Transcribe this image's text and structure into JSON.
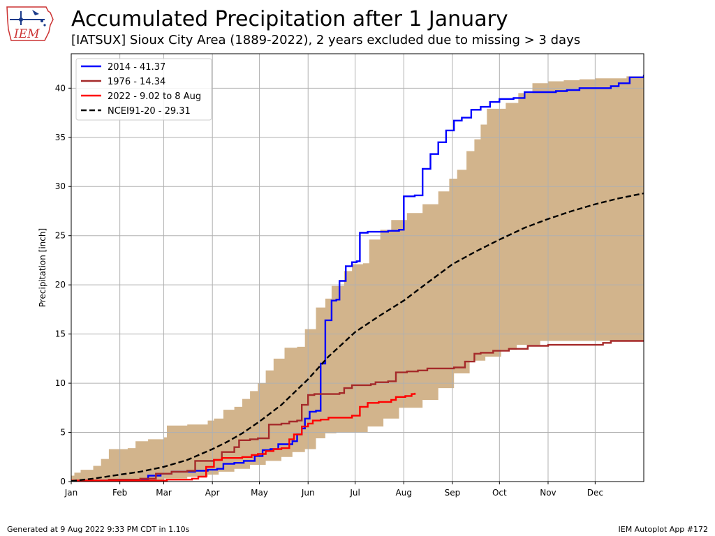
{
  "header": {
    "title": "Accumulated Precipitation after 1 January",
    "subtitle": "[IATSUX] Sioux City Area (1889-2022), 2 years excluded due to missing > 3 days",
    "logo_text": "IEM"
  },
  "footer": {
    "left": "Generated at 9 Aug 2022 9:33 PM CDT in 1.10s",
    "right": "IEM Autoplot App #172"
  },
  "chart_data": {
    "type": "line",
    "ylabel": "Precipitation [inch]",
    "ylim": [
      0,
      43.5
    ],
    "xlim": [
      1,
      366
    ],
    "yticks": [
      0,
      5,
      10,
      15,
      20,
      25,
      30,
      35,
      40
    ],
    "xticks": [
      {
        "label": "Jan",
        "day": 1
      },
      {
        "label": "Feb",
        "day": 32
      },
      {
        "label": "Mar",
        "day": 60
      },
      {
        "label": "Apr",
        "day": 91
      },
      {
        "label": "May",
        "day": 121
      },
      {
        "label": "Jun",
        "day": 152
      },
      {
        "label": "Jul",
        "day": 182
      },
      {
        "label": "Aug",
        "day": 213
      },
      {
        "label": "Sep",
        "day": 244
      },
      {
        "label": "Oct",
        "day": 274
      },
      {
        "label": "Nov",
        "day": 305
      },
      {
        "label": "Dec",
        "day": 335
      }
    ],
    "grid": true,
    "legend_position": "top-left",
    "band": {
      "color": "#d2b48c",
      "upper": [
        [
          1,
          0.6
        ],
        [
          3,
          0.9
        ],
        [
          7,
          1.2
        ],
        [
          15,
          1.6
        ],
        [
          20,
          2.3
        ],
        [
          25,
          3.3
        ],
        [
          37,
          3.4
        ],
        [
          42,
          4.1
        ],
        [
          50,
          4.3
        ],
        [
          60,
          4.5
        ],
        [
          62,
          5.7
        ],
        [
          75,
          5.8
        ],
        [
          88,
          6.2
        ],
        [
          92,
          6.4
        ],
        [
          98,
          7.3
        ],
        [
          105,
          7.6
        ],
        [
          110,
          8.4
        ],
        [
          115,
          9.2
        ],
        [
          120,
          10.0
        ],
        [
          125,
          11.3
        ],
        [
          130,
          12.5
        ],
        [
          137,
          13.6
        ],
        [
          145,
          13.7
        ],
        [
          150,
          15.5
        ],
        [
          157,
          17.7
        ],
        [
          163,
          18.6
        ],
        [
          167,
          19.9
        ],
        [
          175,
          21.4
        ],
        [
          180,
          22.1
        ],
        [
          187,
          22.2
        ],
        [
          191,
          24.6
        ],
        [
          198,
          25.6
        ],
        [
          205,
          26.6
        ],
        [
          210,
          26.6
        ],
        [
          215,
          27.3
        ],
        [
          225,
          28.2
        ],
        [
          235,
          29.5
        ],
        [
          242,
          30.8
        ],
        [
          247,
          31.7
        ],
        [
          253,
          33.6
        ],
        [
          258,
          34.8
        ],
        [
          262,
          36.3
        ],
        [
          266,
          37.9
        ],
        [
          270,
          37.9
        ],
        [
          278,
          38.5
        ],
        [
          286,
          39.5
        ],
        [
          295,
          40.5
        ],
        [
          305,
          40.7
        ],
        [
          315,
          40.8
        ],
        [
          325,
          40.9
        ],
        [
          335,
          41.0
        ],
        [
          345,
          41.0
        ],
        [
          355,
          41.2
        ],
        [
          366,
          41.4
        ]
      ],
      "lower": [
        [
          1,
          0.0
        ],
        [
          30,
          0.0
        ],
        [
          45,
          0.05
        ],
        [
          60,
          0.1
        ],
        [
          75,
          0.3
        ],
        [
          88,
          0.5
        ],
        [
          95,
          0.7
        ],
        [
          105,
          1.0
        ],
        [
          115,
          1.3
        ],
        [
          125,
          1.7
        ],
        [
          135,
          2.1
        ],
        [
          142,
          2.5
        ],
        [
          150,
          3.0
        ],
        [
          157,
          3.3
        ],
        [
          163,
          4.4
        ],
        [
          170,
          4.9
        ],
        [
          180,
          5.0
        ],
        [
          190,
          5.0
        ],
        [
          200,
          5.6
        ],
        [
          210,
          6.4
        ],
        [
          225,
          7.5
        ],
        [
          235,
          8.3
        ],
        [
          245,
          9.5
        ],
        [
          255,
          11.0
        ],
        [
          265,
          12.3
        ],
        [
          275,
          12.7
        ],
        [
          285,
          13.4
        ],
        [
          300,
          13.9
        ],
        [
          366,
          14.3
        ]
      ]
    },
    "series": [
      {
        "name": "2014 - 41.37",
        "color": "#0000ff",
        "dashed": false,
        "points": [
          [
            1,
            0.0
          ],
          [
            20,
            0.1
          ],
          [
            45,
            0.2
          ],
          [
            50,
            0.6
          ],
          [
            58,
            0.8
          ],
          [
            65,
            1.0
          ],
          [
            80,
            1.1
          ],
          [
            88,
            1.2
          ],
          [
            94,
            1.3
          ],
          [
            98,
            1.8
          ],
          [
            105,
            1.9
          ],
          [
            111,
            2.1
          ],
          [
            118,
            2.6
          ],
          [
            123,
            3.2
          ],
          [
            128,
            3.3
          ],
          [
            133,
            3.8
          ],
          [
            142,
            4.1
          ],
          [
            145,
            4.8
          ],
          [
            148,
            5.4
          ],
          [
            150,
            6.4
          ],
          [
            153,
            7.1
          ],
          [
            157,
            7.2
          ],
          [
            159,
            7.2
          ],
          [
            160,
            12.0
          ],
          [
            163,
            16.4
          ],
          [
            167,
            18.4
          ],
          [
            170,
            18.5
          ],
          [
            172,
            20.4
          ],
          [
            176,
            21.9
          ],
          [
            180,
            22.3
          ],
          [
            183,
            22.4
          ],
          [
            185,
            25.3
          ],
          [
            190,
            25.4
          ],
          [
            197,
            25.4
          ],
          [
            203,
            25.5
          ],
          [
            210,
            25.6
          ],
          [
            213,
            29.0
          ],
          [
            220,
            29.1
          ],
          [
            225,
            31.8
          ],
          [
            230,
            33.3
          ],
          [
            235,
            34.5
          ],
          [
            240,
            35.7
          ],
          [
            245,
            36.7
          ],
          [
            250,
            37.0
          ],
          [
            256,
            37.8
          ],
          [
            262,
            38.1
          ],
          [
            268,
            38.6
          ],
          [
            274,
            38.9
          ],
          [
            283,
            39.0
          ],
          [
            290,
            39.6
          ],
          [
            296,
            39.6
          ],
          [
            303,
            39.6
          ],
          [
            310,
            39.7
          ],
          [
            317,
            39.8
          ],
          [
            325,
            40.0
          ],
          [
            335,
            40.0
          ],
          [
            345,
            40.2
          ],
          [
            350,
            40.5
          ],
          [
            357,
            41.1
          ],
          [
            366,
            41.37
          ]
        ]
      },
      {
        "name": "1976 - 14.34",
        "color": "#a52a2a",
        "dashed": false,
        "points": [
          [
            1,
            0.1
          ],
          [
            25,
            0.2
          ],
          [
            45,
            0.3
          ],
          [
            55,
            0.8
          ],
          [
            65,
            1.0
          ],
          [
            75,
            1.1
          ],
          [
            80,
            2.1
          ],
          [
            92,
            2.2
          ],
          [
            97,
            3.0
          ],
          [
            105,
            3.5
          ],
          [
            108,
            4.2
          ],
          [
            115,
            4.3
          ],
          [
            120,
            4.4
          ],
          [
            127,
            5.8
          ],
          [
            135,
            5.9
          ],
          [
            140,
            6.1
          ],
          [
            145,
            6.2
          ],
          [
            148,
            7.8
          ],
          [
            152,
            8.8
          ],
          [
            156,
            8.9
          ],
          [
            165,
            8.9
          ],
          [
            172,
            9.0
          ],
          [
            175,
            9.5
          ],
          [
            180,
            9.8
          ],
          [
            185,
            9.8
          ],
          [
            192,
            9.9
          ],
          [
            195,
            10.1
          ],
          [
            203,
            10.2
          ],
          [
            208,
            11.1
          ],
          [
            215,
            11.2
          ],
          [
            222,
            11.3
          ],
          [
            228,
            11.5
          ],
          [
            238,
            11.5
          ],
          [
            245,
            11.6
          ],
          [
            252,
            12.2
          ],
          [
            258,
            13.0
          ],
          [
            262,
            13.1
          ],
          [
            270,
            13.3
          ],
          [
            280,
            13.5
          ],
          [
            292,
            13.8
          ],
          [
            305,
            13.9
          ],
          [
            320,
            13.9
          ],
          [
            330,
            13.9
          ],
          [
            337,
            13.9
          ],
          [
            340,
            14.1
          ],
          [
            345,
            14.3
          ],
          [
            366,
            14.34
          ]
        ]
      },
      {
        "name": "2022 - 9.02 to 8 Aug",
        "color": "#ff0000",
        "dashed": false,
        "points": [
          [
            1,
            0.1
          ],
          [
            15,
            0.1
          ],
          [
            30,
            0.1
          ],
          [
            50,
            0.1
          ],
          [
            62,
            0.2
          ],
          [
            78,
            0.3
          ],
          [
            82,
            0.5
          ],
          [
            87,
            1.5
          ],
          [
            92,
            2.2
          ],
          [
            97,
            2.4
          ],
          [
            105,
            2.4
          ],
          [
            110,
            2.5
          ],
          [
            116,
            2.7
          ],
          [
            120,
            2.8
          ],
          [
            125,
            3.1
          ],
          [
            130,
            3.3
          ],
          [
            135,
            3.4
          ],
          [
            140,
            4.3
          ],
          [
            143,
            4.8
          ],
          [
            148,
            5.6
          ],
          [
            152,
            5.9
          ],
          [
            155,
            6.2
          ],
          [
            160,
            6.3
          ],
          [
            165,
            6.5
          ],
          [
            175,
            6.5
          ],
          [
            180,
            6.7
          ],
          [
            185,
            7.6
          ],
          [
            190,
            8.0
          ],
          [
            197,
            8.1
          ],
          [
            200,
            8.1
          ],
          [
            205,
            8.3
          ],
          [
            208,
            8.6
          ],
          [
            214,
            8.7
          ],
          [
            218,
            8.9
          ],
          [
            220,
            9.02
          ]
        ]
      },
      {
        "name": "NCEI91-20 - 29.31",
        "color": "#000000",
        "dashed": true,
        "points": [
          [
            1,
            0.05
          ],
          [
            15,
            0.3
          ],
          [
            32,
            0.7
          ],
          [
            45,
            1.0
          ],
          [
            60,
            1.5
          ],
          [
            75,
            2.2
          ],
          [
            91,
            3.3
          ],
          [
            100,
            4.0
          ],
          [
            110,
            4.9
          ],
          [
            121,
            6.1
          ],
          [
            135,
            7.8
          ],
          [
            152,
            10.4
          ],
          [
            165,
            12.7
          ],
          [
            182,
            15.2
          ],
          [
            197,
            16.8
          ],
          [
            213,
            18.4
          ],
          [
            228,
            20.2
          ],
          [
            244,
            22.1
          ],
          [
            259,
            23.4
          ],
          [
            274,
            24.6
          ],
          [
            290,
            25.8
          ],
          [
            305,
            26.7
          ],
          [
            320,
            27.5
          ],
          [
            335,
            28.2
          ],
          [
            350,
            28.8
          ],
          [
            366,
            29.31
          ]
        ]
      }
    ]
  }
}
